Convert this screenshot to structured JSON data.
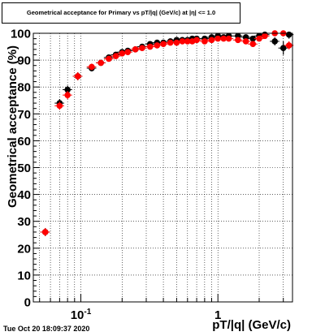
{
  "title": "Geometrical acceptance for Primary vs pT/|q| (GeV/c) at |η| <= 1.0",
  "timestamp": "Tue Oct 20 18:09:37 2020",
  "chart_data": {
    "type": "scatter",
    "xlabel": "pT/|q| (GeV/c)",
    "ylabel": "Geometrical acceptance (%)",
    "x_scale": "log",
    "xlim": [
      0.045,
      3.5
    ],
    "ylim": [
      0,
      100
    ],
    "grid": true,
    "x_ticks": [
      {
        "value": 0.1,
        "label": "10",
        "exp": "-1"
      },
      {
        "value": 1,
        "label": "1",
        "exp": ""
      }
    ],
    "y_ticks": [
      0,
      10,
      20,
      30,
      40,
      50,
      60,
      70,
      80,
      90,
      100
    ],
    "series": [
      {
        "color": "#000000",
        "x": [
          0.055,
          0.07,
          0.08,
          0.095,
          0.12,
          0.14,
          0.16,
          0.18,
          0.2,
          0.22,
          0.25,
          0.28,
          0.32,
          0.36,
          0.4,
          0.45,
          0.5,
          0.55,
          0.6,
          0.65,
          0.7,
          0.8,
          0.9,
          1.0,
          1.1,
          1.2,
          1.4,
          1.6,
          1.8,
          2.0,
          2.2,
          2.6,
          3.0,
          3.3
        ],
        "y": [
          26,
          74,
          79,
          84,
          87,
          89,
          91,
          92,
          93,
          93.5,
          94,
          95,
          96,
          96.5,
          96.5,
          97,
          97.5,
          97.5,
          97.5,
          98,
          98,
          98,
          98.5,
          99,
          98.5,
          99,
          99,
          98.5,
          98,
          99,
          99.5,
          97,
          94.5,
          99.5
        ],
        "yerr": [
          1.5,
          1.5,
          1.5,
          1.5,
          1.2,
          1,
          1,
          1,
          1,
          1,
          1,
          1,
          1,
          1,
          1,
          1,
          1,
          1,
          1,
          1,
          1,
          1,
          1,
          1,
          1,
          1,
          1,
          1,
          1,
          1,
          1,
          1.5,
          2.5,
          1.5
        ]
      },
      {
        "color": "#ff0000",
        "x": [
          0.055,
          0.07,
          0.08,
          0.095,
          0.12,
          0.14,
          0.16,
          0.18,
          0.2,
          0.22,
          0.25,
          0.28,
          0.32,
          0.36,
          0.4,
          0.45,
          0.5,
          0.55,
          0.6,
          0.65,
          0.7,
          0.8,
          0.9,
          1.0,
          1.1,
          1.2,
          1.4,
          1.6,
          1.8,
          2.0,
          2.2,
          2.6,
          3.0,
          3.3
        ],
        "y": [
          26,
          73,
          77,
          84,
          87.5,
          89,
          90.5,
          91.5,
          92.5,
          93,
          94,
          94.5,
          95,
          95.5,
          96,
          96.5,
          96.5,
          97,
          97,
          97,
          97.5,
          97,
          97.5,
          98,
          98,
          98,
          97.5,
          97,
          96,
          98,
          99,
          100,
          100,
          95.5
        ],
        "yerr": [
          1.5,
          1.5,
          1.5,
          1.5,
          1.2,
          1,
          1,
          1,
          1,
          1,
          1,
          1,
          1,
          1,
          1,
          1,
          1,
          1,
          1,
          1,
          1,
          1,
          1,
          1,
          1,
          1,
          1,
          1,
          1,
          1,
          1,
          1,
          1,
          1.5
        ]
      }
    ]
  }
}
